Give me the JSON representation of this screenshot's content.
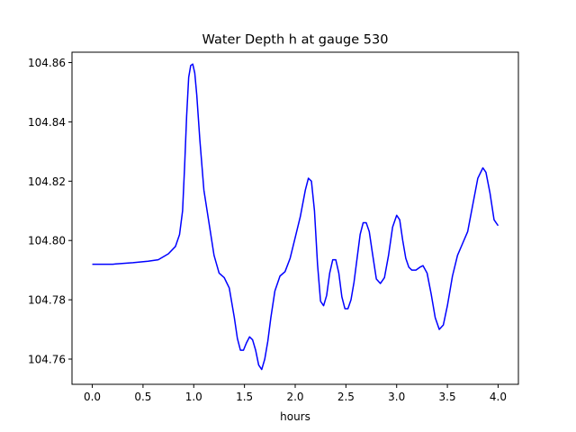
{
  "chart_data": {
    "type": "line",
    "title": "Water Depth h at gauge 530",
    "xlabel": "hours",
    "ylabel": "",
    "xlim": [
      -0.2,
      4.2
    ],
    "ylim": [
      104.7515,
      104.8635
    ],
    "xticks": [
      0.0,
      0.5,
      1.0,
      1.5,
      2.0,
      2.5,
      3.0,
      3.5,
      4.0
    ],
    "xtick_labels": [
      "0.0",
      "0.5",
      "1.0",
      "1.5",
      "2.0",
      "2.5",
      "3.0",
      "3.5",
      "4.0"
    ],
    "yticks": [
      104.76,
      104.78,
      104.8,
      104.82,
      104.84,
      104.86
    ],
    "ytick_labels": [
      "104.76",
      "104.78",
      "104.80",
      "104.82",
      "104.84",
      "104.86"
    ],
    "grid": false,
    "series": [
      {
        "color": "#0000ff",
        "x": [
          0.0,
          0.2,
          0.4,
          0.55,
          0.65,
          0.75,
          0.82,
          0.86,
          0.89,
          0.91,
          0.93,
          0.95,
          0.97,
          0.99,
          1.01,
          1.03,
          1.06,
          1.1,
          1.15,
          1.2,
          1.25,
          1.3,
          1.35,
          1.4,
          1.43,
          1.46,
          1.49,
          1.52,
          1.55,
          1.58,
          1.61,
          1.64,
          1.67,
          1.7,
          1.73,
          1.76,
          1.8,
          1.85,
          1.9,
          1.95,
          2.0,
          2.05,
          2.1,
          2.13,
          2.16,
          2.19,
          2.22,
          2.25,
          2.28,
          2.31,
          2.34,
          2.37,
          2.4,
          2.43,
          2.46,
          2.49,
          2.52,
          2.55,
          2.58,
          2.61,
          2.64,
          2.67,
          2.7,
          2.73,
          2.76,
          2.8,
          2.84,
          2.88,
          2.92,
          2.96,
          3.0,
          3.03,
          3.06,
          3.09,
          3.12,
          3.15,
          3.19,
          3.23,
          3.26,
          3.3,
          3.34,
          3.38,
          3.42,
          3.46,
          3.5,
          3.55,
          3.6,
          3.65,
          3.7,
          3.75,
          3.8,
          3.85,
          3.88,
          3.92,
          3.96,
          4.0
        ],
        "y": [
          104.792,
          104.792,
          104.7925,
          104.793,
          104.7935,
          104.7955,
          104.798,
          104.802,
          104.81,
          104.825,
          104.842,
          104.855,
          104.859,
          104.8595,
          104.8565,
          104.849,
          104.834,
          104.817,
          104.806,
          104.795,
          104.789,
          104.7875,
          104.784,
          104.774,
          104.767,
          104.763,
          104.763,
          104.7655,
          104.7675,
          104.7665,
          104.763,
          104.758,
          104.7565,
          104.76,
          104.766,
          104.774,
          104.783,
          104.788,
          104.7895,
          104.794,
          104.801,
          104.808,
          104.817,
          104.821,
          104.82,
          104.81,
          104.792,
          104.7795,
          104.778,
          104.7815,
          104.789,
          104.7935,
          104.7935,
          104.789,
          104.781,
          104.777,
          104.777,
          104.78,
          104.786,
          104.794,
          104.802,
          104.806,
          104.806,
          104.803,
          104.796,
          104.787,
          104.7855,
          104.7875,
          104.795,
          104.8045,
          104.8085,
          104.807,
          104.8,
          104.794,
          104.791,
          104.79,
          104.79,
          104.791,
          104.7915,
          104.789,
          104.782,
          104.774,
          104.77,
          104.7715,
          104.778,
          104.788,
          104.795,
          104.799,
          104.803,
          104.812,
          104.821,
          104.8245,
          104.823,
          104.816,
          104.807,
          104.805
        ]
      }
    ]
  }
}
